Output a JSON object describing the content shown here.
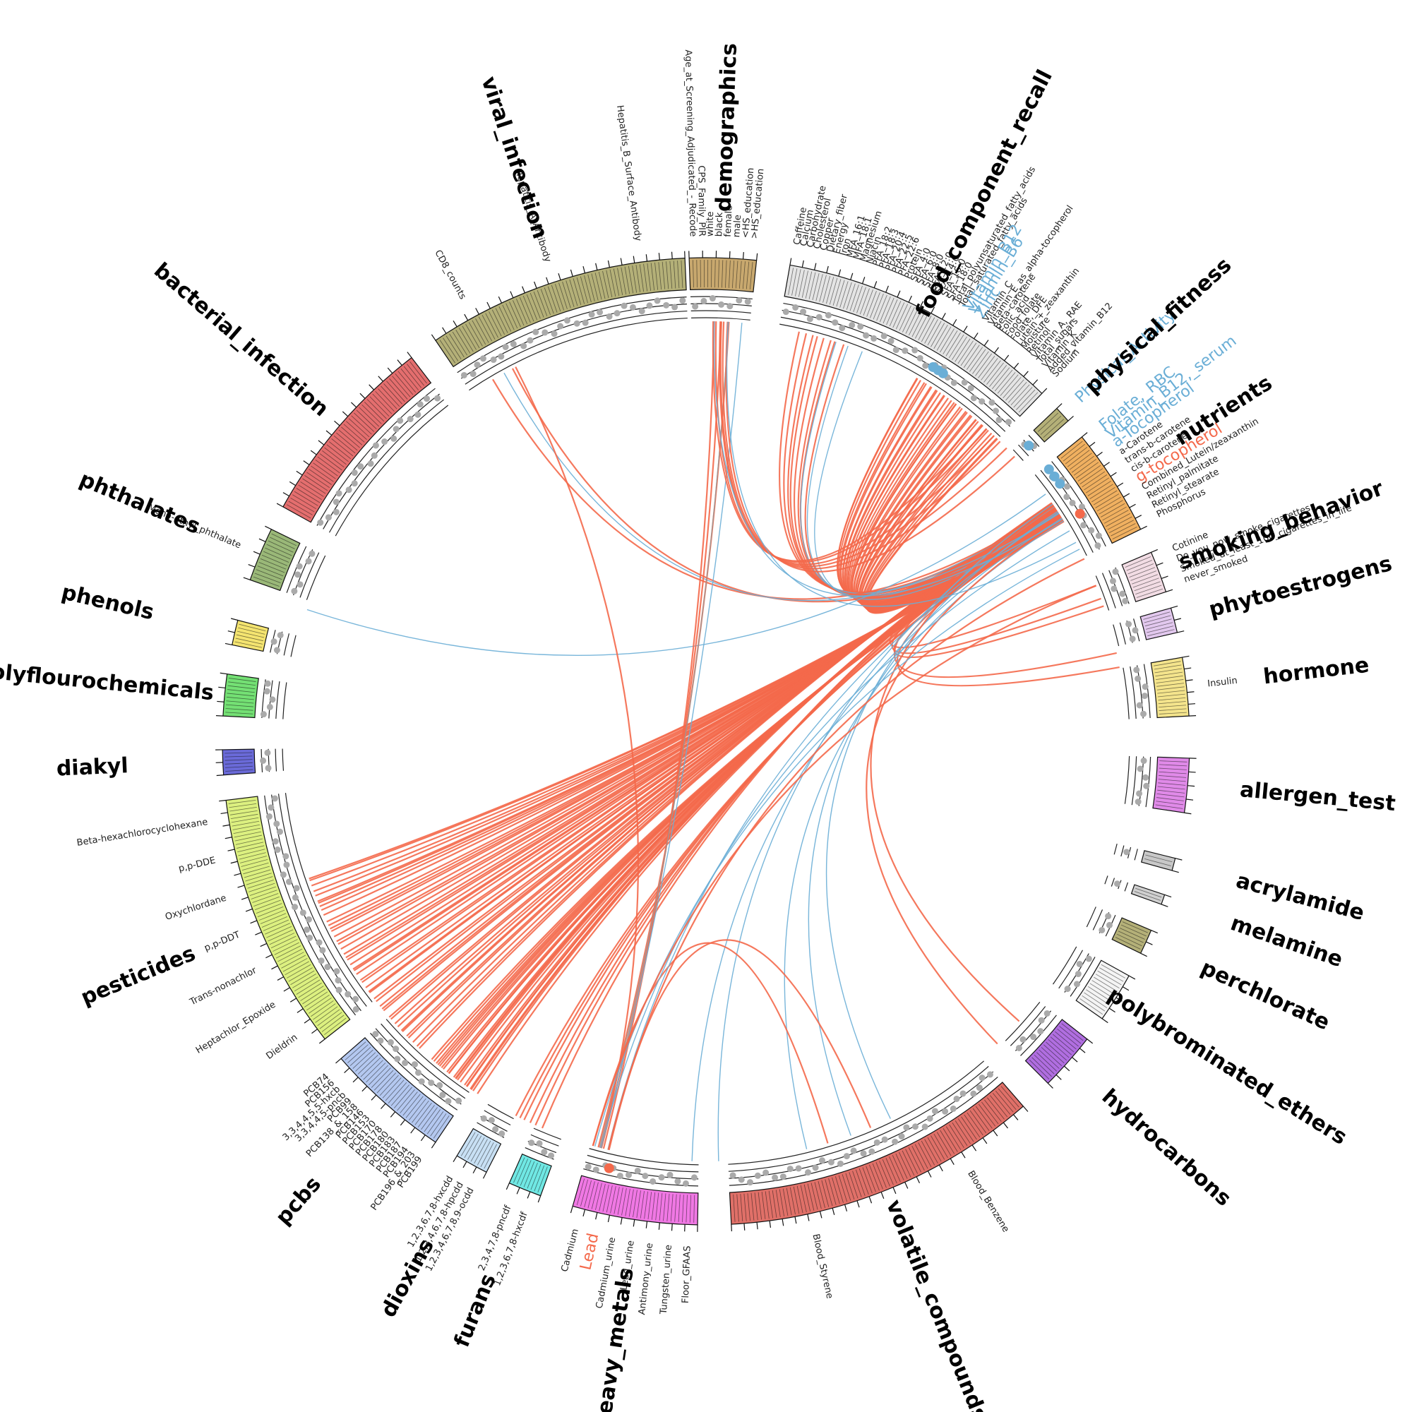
{
  "chart_data": {
    "type": "chord",
    "colors": {
      "positive": "#f4694b",
      "negative": "#6aaed6",
      "neutral": "#999999",
      "dot": "#aaaaaa"
    },
    "groups": [
      {
        "name": "demographics",
        "color": "#c8a86e",
        "start": -2,
        "end": 6,
        "labels": [
          "Age_at_Screening_Adjudicated_-_Recode",
          "CPS_Family_PIR",
          "white",
          "black",
          "female",
          "male",
          "<HS_education",
          ">HS_education"
        ]
      },
      {
        "name": "food_component_recall",
        "color": "#e4e4e4",
        "start": 10,
        "end": 44,
        "labels": [
          "Caffeine",
          "Calcium",
          "Carbohydrate",
          "Cholesterol",
          "Copper",
          "Dietary_fiber",
          "Energy",
          "Iron",
          "MFA_16:1",
          "MFA_18:1",
          "Magnesium",
          "Niacin",
          "PFA_18:2",
          "PFA_18:3",
          "PFA_20:4",
          "PFA_22:5",
          "PFA_22:6",
          "Protein",
          "SFA_4:0",
          "SFA_6:0",
          "SFA_8:0",
          "SFA_12:0",
          "SFA_14:0",
          "SFA_16:0",
          "SFA_18:0",
          "Total_polyunsaturated_fatty_acids",
          "Total_saturated_fatty_acids",
          "Vitamin_B12",
          "Vitamin_B6",
          "Zinc",
          "Vitamin_C",
          "Vitamin_E_as_alpha-tocopherol",
          "Beta-carotene",
          "Folic_acid",
          "Food_folate",
          "Folate,_DFE",
          "Lutein_+_zeaxanthin",
          "Moisture",
          "Retinol",
          "Vitamin_A,_RAE",
          "Total_sugars",
          "Vitamin_K",
          "Added_vitamin_B12",
          "Sodium"
        ]
      },
      {
        "name": "physical_fitness",
        "color": "#b4b078",
        "start": 46.5,
        "end": 48.5,
        "labels": [
          "Physical_Activity"
        ]
      },
      {
        "name": "nutrients",
        "color": "#f0b060",
        "start": 51,
        "end": 64,
        "labels": [
          "Folate,_RBC",
          "Vitamin_B12,_serum",
          "a-Tocopherol",
          "a-Carotene",
          "trans-b-carotene",
          "cis-b-carotene",
          "g-tocopherol",
          "Combined_Lutein/zeaxanthin",
          "Retinyl_palmitate",
          "Retinyl_stearate",
          "Phosphorus"
        ]
      },
      {
        "name": "smoking_behavior",
        "color": "#f2dce4",
        "start": 67,
        "end": 72,
        "labels": [
          "Cotinine",
          "Do_you_now_smoke_cigarettes...",
          "Smoked_at_least_100_cigarettes_in_life",
          "never_smoked"
        ]
      },
      {
        "name": "phytoestrogens",
        "color": "#e2c8ee",
        "start": 74,
        "end": 77,
        "labels": []
      },
      {
        "name": "hormone",
        "color": "#f4e48c",
        "start": 80,
        "end": 87,
        "labels": [
          "Insulin"
        ]
      },
      {
        "name": "allergen_test",
        "color": "#e08ae8",
        "start": 92,
        "end": 98.5,
        "labels": []
      },
      {
        "name": "acrylamide",
        "color": "#c8c8c8",
        "start": 104,
        "end": 105.5,
        "labels": []
      },
      {
        "name": "melamine",
        "color": "#d0d0d0",
        "start": 108.5,
        "end": 109.7,
        "labels": []
      },
      {
        "name": "perchlorate",
        "color": "#b4b078",
        "start": 113,
        "end": 116,
        "labels": []
      },
      {
        "name": "polybrominated_ethers",
        "color": "#f4f4f4",
        "start": 119,
        "end": 125,
        "labels": []
      },
      {
        "name": "hydrocarbons",
        "color": "#b06ee0",
        "start": 128,
        "end": 135,
        "labels": []
      },
      {
        "name": "volatile_compounds",
        "color": "#e07068",
        "start": 139,
        "end": 177,
        "labels": [
          "Blood_Benzene",
          "Blood_Styrene"
        ]
      },
      {
        "name": "heavy_metals",
        "color": "#f078e4",
        "start": 181,
        "end": 196,
        "labels": [
          "Floor_GFAAS",
          "Tungsten_urine",
          "Antimony_urine",
          "Lead_urine",
          "Cadmium_urine",
          "Lead",
          "Cadmium"
        ]
      },
      {
        "name": "furans",
        "color": "#70e8e4",
        "start": 200,
        "end": 204,
        "labels": [
          "1,2,3,6,7,8-hxcdf",
          "2,3,4,7,8-pncdf"
        ]
      },
      {
        "name": "dioxins",
        "color": "#c8e0f4",
        "start": 207,
        "end": 211,
        "labels": [
          "1,2,3,4,6,7,8,9-ocdd",
          "1,2,3,4,6,7,8-hpcdd",
          "1,2,3,6,7,8-hxcdd"
        ]
      },
      {
        "name": "pcbs",
        "color": "#b4c8f0",
        "start": 214,
        "end": 229,
        "labels": [
          "PCB199",
          "PCB196_&_203",
          "PCB194",
          "PCB187",
          "PCB183",
          "PCB180",
          "PCB178",
          "PCB170",
          "PCB153",
          "PCB146",
          "PCB138_&_158",
          "PCB99",
          "3,3,4,4,5-pncb",
          "3,3,4,4,5,5-hxcb",
          "PCB156",
          "PCB74"
        ]
      },
      {
        "name": "pesticides",
        "color": "#dcf080",
        "start": 232,
        "end": 263,
        "labels": [
          "Dieldrin",
          "Heptachlor_Epoxide",
          "Trans-nonachlor",
          "p,p-DDT",
          "Oxychlordane",
          "p,p-DDE",
          "Beta-hexachlorocyclohexane"
        ]
      },
      {
        "name": "diakyl",
        "color": "#6a6ad8",
        "start": 266,
        "end": 269,
        "labels": []
      },
      {
        "name": "polyflourochemicals",
        "color": "#74e074",
        "start": 273,
        "end": 278,
        "labels": []
      },
      {
        "name": "phenols",
        "color": "#f4e470",
        "start": 281.5,
        "end": 284.5,
        "labels": []
      },
      {
        "name": "phthalates",
        "color": "#9ab878",
        "start": 289.5,
        "end": 296,
        "labels": [
          "Mono-ethyl_phthalate"
        ]
      },
      {
        "name": "bacterial_infection",
        "color": "#e46e6e",
        "start": 299,
        "end": 322.5,
        "labels": []
      },
      {
        "name": "viral_infection",
        "color": "#b4b078",
        "start": 326,
        "end": 357.5,
        "labels": [
          "CD8_counts",
          "Hepatitis_A_Antibody",
          "Hepatitis_B_Surface_Antibody"
        ]
      }
    ],
    "highlights": [
      {
        "text": "Vitamin_B12",
        "color": "#6aaed6"
      },
      {
        "text": "Vitamin_B6",
        "color": "#6aaed6"
      },
      {
        "text": "Zinc",
        "color": "#6aaed6"
      },
      {
        "text": "Physical_Activity",
        "color": "#6aaed6"
      },
      {
        "text": "Folate,_RBC",
        "color": "#6aaed6"
      },
      {
        "text": "Vitamin_B12,_serum",
        "color": "#6aaed6"
      },
      {
        "text": "a-Tocopherol",
        "color": "#6aaed6"
      },
      {
        "text": "g-tocopherol",
        "color": "#f4694b"
      },
      {
        "text": "Lead",
        "color": "#f4694b"
      }
    ],
    "links": [
      {
        "a": 57,
        "b": 237,
        "sign": "positive",
        "count": 46,
        "spread_a": 3,
        "spread_b": 28
      },
      {
        "a": 57,
        "b": 217,
        "sign": "positive",
        "count": 22,
        "spread_a": 2,
        "spread_b": 8
      },
      {
        "a": 57,
        "b": 205,
        "sign": "positive",
        "count": 6,
        "spread_a": 2,
        "spread_b": 4
      },
      {
        "a": 57,
        "b": 37,
        "sign": "positive",
        "count": 34,
        "spread_a": 2,
        "spread_b": 14
      },
      {
        "a": 57,
        "b": 16,
        "sign": "positive",
        "count": 8,
        "spread_a": 2,
        "spread_b": 6
      },
      {
        "a": 57,
        "b": 20,
        "sign": "negative",
        "count": 3,
        "spread_a": 2,
        "spread_b": 4
      },
      {
        "a": 57,
        "b": 70,
        "sign": "positive",
        "count": 3,
        "spread_a": 2,
        "spread_b": 3
      },
      {
        "a": 57,
        "b": 79,
        "sign": "positive",
        "count": 2,
        "spread_a": 2,
        "spread_b": 2
      },
      {
        "a": 57,
        "b": 331,
        "sign": "positive",
        "count": 2,
        "spread_a": 2,
        "spread_b": 3
      },
      {
        "a": 57,
        "b": 331,
        "sign": "negative",
        "count": 1,
        "spread_a": 1,
        "spread_b": 1
      },
      {
        "a": 54,
        "b": 288,
        "sign": "negative",
        "count": 1,
        "spread_a": 1,
        "spread_b": 1
      },
      {
        "a": 57,
        "b": 160,
        "sign": "negative",
        "count": 3,
        "spread_a": 3,
        "spread_b": 12
      },
      {
        "a": 57,
        "b": 180,
        "sign": "negative",
        "count": 2,
        "spread_a": 2,
        "spread_b": 4
      },
      {
        "a": 57,
        "b": 134,
        "sign": "positive",
        "count": 2,
        "spread_a": 2,
        "spread_b": 4
      },
      {
        "a": 194.5,
        "b": 2,
        "sign": "positive",
        "count": 3,
        "spread_a": 1,
        "spread_b": 2
      },
      {
        "a": 194.5,
        "b": 3,
        "sign": "neutral",
        "count": 1,
        "spread_a": 1,
        "spread_b": 1
      },
      {
        "a": 194.5,
        "b": 5,
        "sign": "negative",
        "count": 1,
        "spread_a": 1,
        "spread_b": 1
      },
      {
        "a": 194.5,
        "b": 333,
        "sign": "positive",
        "count": 1,
        "spread_a": 1,
        "spread_b": 1
      },
      {
        "a": 194.5,
        "b": 160,
        "sign": "positive",
        "count": 2,
        "spread_a": 2,
        "spread_b": 6
      },
      {
        "a": 194.5,
        "b": 60,
        "sign": "negative",
        "count": 3,
        "spread_a": 2,
        "spread_b": 6
      },
      {
        "a": 194.5,
        "b": 66,
        "sign": "positive",
        "count": 2,
        "spread_a": 2,
        "spread_b": 4
      },
      {
        "a": 2,
        "b": 44,
        "sign": "positive",
        "count": 6,
        "spread_a": 2,
        "spread_b": 6
      },
      {
        "a": 2,
        "b": 60,
        "sign": "negative",
        "count": 2,
        "spread_a": 2,
        "spread_b": 4
      }
    ]
  }
}
